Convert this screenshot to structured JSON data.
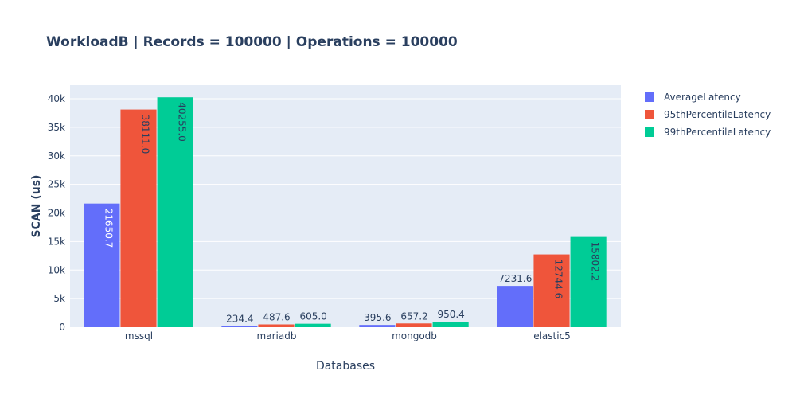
{
  "chart_data": {
    "type": "bar",
    "title": "WorkloadB | Records = 100000 | Operations = 100000",
    "xlabel": "Databases",
    "ylabel": "SCAN (us)",
    "categories": [
      "mssql",
      "mariadb",
      "mongodb",
      "elastic5"
    ],
    "series": [
      {
        "name": "AverageLatency",
        "color": "#636efa",
        "values": [
          21650.7,
          234.4,
          395.6,
          7231.6
        ],
        "labels": [
          "21650.7",
          "234.4",
          "395.6",
          "7231.6"
        ]
      },
      {
        "name": "95thPercentileLatency",
        "color": "#ef553b",
        "values": [
          38111.0,
          487.6,
          657.2,
          12744.6
        ],
        "labels": [
          "38111.0",
          "487.6",
          "657.2",
          "12744.6"
        ]
      },
      {
        "name": "99thPercentileLatency",
        "color": "#00cc96",
        "values": [
          40255.0,
          605.0,
          950.4,
          15802.2
        ],
        "labels": [
          "40255.0",
          "605.0",
          "950.4",
          "15802.2"
        ]
      }
    ],
    "ylim": [
      0,
      42374
    ],
    "yticks": [
      0,
      5000,
      10000,
      15000,
      20000,
      25000,
      30000,
      35000,
      40000
    ],
    "ytick_labels": [
      "0",
      "5k",
      "10k",
      "15k",
      "20k",
      "25k",
      "30k",
      "35k",
      "40k"
    ],
    "grid": true,
    "legend_position": "top-right",
    "plot_bg": "#e5ecf6"
  }
}
